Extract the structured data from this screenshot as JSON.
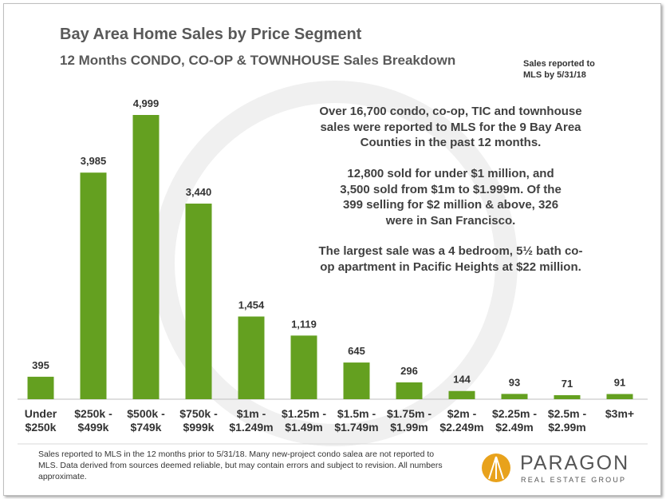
{
  "chart_data": {
    "type": "bar",
    "title": "Bay Area Home Sales by Price Segment",
    "subtitle": "12 Months CONDO, CO-OP & TOWNHOUSE Sales Breakdown",
    "note": "Sales reported to\nMLS by 5/31/18",
    "categories": [
      "Under\n$250k",
      "$250k -\n$499k",
      "$500k -\n$749k",
      "$750k -\n$999k",
      "$1m -\n$1.249m",
      "$1.25m -\n$1.49m",
      "$1.5m -\n$1.749m",
      "$1.75m -\n$1.99m",
      "$2m -\n$2.249m",
      "$2.25m -\n$2.49m",
      "$2.5m -\n$2.99m",
      "$3m+"
    ],
    "values": [
      395,
      3985,
      4999,
      3440,
      1454,
      1119,
      645,
      296,
      144,
      93,
      71,
      91
    ],
    "value_labels": [
      "395",
      "3,985",
      "4,999",
      "3,440",
      "1,454",
      "1,119",
      "645",
      "296",
      "144",
      "93",
      "71",
      "91"
    ],
    "color": "#64a020",
    "annotations": [
      "Over 16,700 condo, co-op, TIC and townhouse\nsales were reported to MLS for the 9 Bay Area\nCounties in the past 12 months.",
      "12,800 sold for under $1 million, and\n3,500 sold from $1m to $1.999m. Of the\n399 selling for $2 million & above, 326\nwere in San Francisco.",
      "The largest sale was a 4 bedroom, 5½ bath co-\nop apartment in Pacific Heights at $22 million."
    ]
  },
  "footer": {
    "footnote": "Sales reported to MLS in the 12 months prior to 5/31/18. Many new-project condo salea are not reported to MLS. Data derived from sources deemed reliable, but may contain errors and subject to revision. All numbers approximate.",
    "logo_name": "PARAGON",
    "logo_tagline": "REAL ESTATE GROUP"
  }
}
